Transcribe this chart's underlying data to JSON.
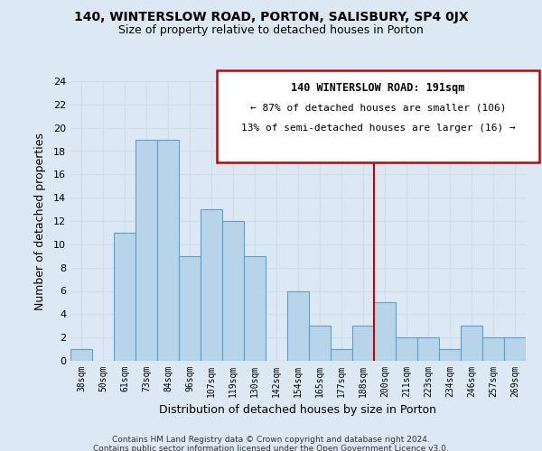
{
  "title": "140, WINTERSLOW ROAD, PORTON, SALISBURY, SP4 0JX",
  "subtitle": "Size of property relative to detached houses in Porton",
  "xlabel": "Distribution of detached houses by size in Porton",
  "ylabel": "Number of detached properties",
  "bin_labels": [
    "38sqm",
    "50sqm",
    "61sqm",
    "73sqm",
    "84sqm",
    "96sqm",
    "107sqm",
    "119sqm",
    "130sqm",
    "142sqm",
    "154sqm",
    "165sqm",
    "177sqm",
    "188sqm",
    "200sqm",
    "211sqm",
    "223sqm",
    "234sqm",
    "246sqm",
    "257sqm",
    "269sqm"
  ],
  "counts": [
    1,
    0,
    11,
    19,
    19,
    9,
    13,
    12,
    9,
    0,
    6,
    3,
    1,
    3,
    5,
    2,
    2,
    1,
    3,
    2,
    2
  ],
  "bar_color": "#b8d4e8",
  "bar_edge_color": "#5a9fd4",
  "vline_color": "#cc0000",
  "annotation_title": "140 WINTERSLOW ROAD: 191sqm",
  "annotation_line1": "← 87% of detached houses are smaller (106)",
  "annotation_line2": "13% of semi-detached houses are larger (16) →",
  "annotation_box_edge": "#cc0000",
  "ylim": [
    0,
    24
  ],
  "yticks": [
    0,
    2,
    4,
    6,
    8,
    10,
    12,
    14,
    16,
    18,
    20,
    22,
    24
  ],
  "footer1": "Contains HM Land Registry data © Crown copyright and database right 2024.",
  "footer2": "Contains public sector information licensed under the Open Government Licence v3.0.",
  "grid_color": "#d0dce8",
  "background_color": "#dce9f5"
}
